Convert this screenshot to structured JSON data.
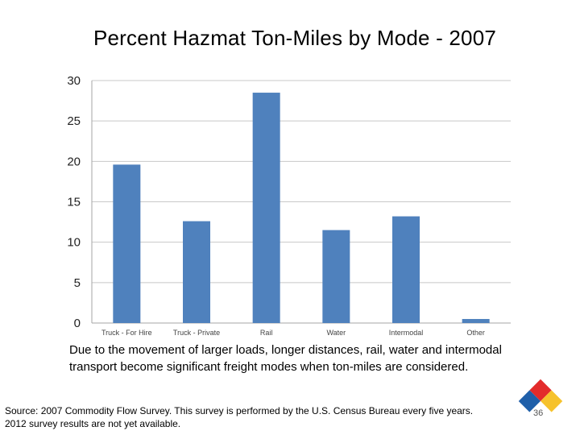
{
  "slide": {
    "title": "Percent Hazmat Ton-Miles by Mode - 2007",
    "caption": "Due to the movement of larger loads, longer distances, rail, water and intermodal transport become significant freight modes when ton-miles are considered.",
    "source_line1": "Source: 2007 Commodity Flow Survey. This survey is performed by the U.S. Census Bureau every five years.",
    "source_line2": "2012 survey results are not yet available.",
    "page_number": "36",
    "logo_icon": "hazmat-diamond-icon"
  },
  "chart_data": {
    "type": "bar",
    "title": "Percent Hazmat Ton-Miles by Mode - 2007",
    "categories": [
      "Truck - For Hire",
      "Truck - Private",
      "Rail",
      "Water",
      "Intermodal",
      "Other"
    ],
    "values": [
      19.6,
      12.6,
      28.5,
      11.5,
      13.2,
      0.5
    ],
    "ylim": [
      0,
      30
    ],
    "yticks": [
      0,
      5,
      10,
      15,
      20,
      25,
      30
    ],
    "grid": true,
    "legend": "none",
    "bar_color": "#4f81bd"
  }
}
